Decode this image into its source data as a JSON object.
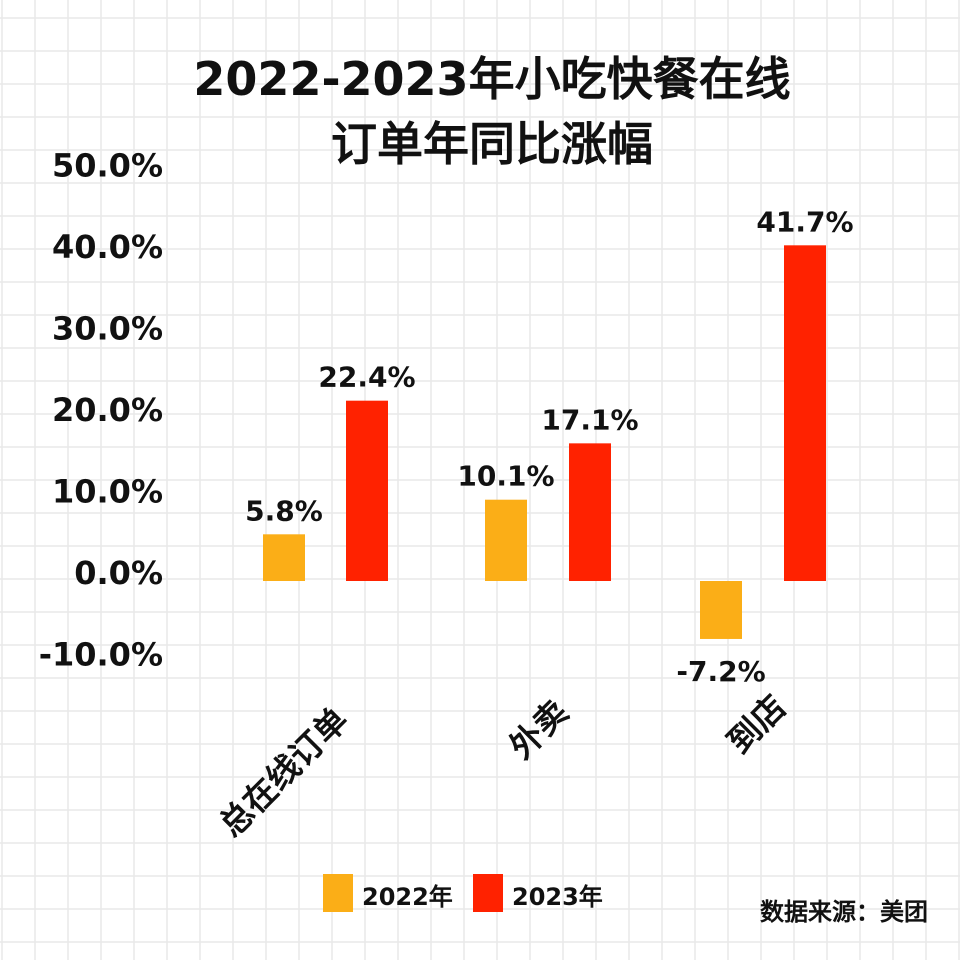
{
  "chart_data": {
    "type": "bar",
    "title_line1": "2022-2023年小吃快餐在线",
    "title_line2": "订单年同比涨幅",
    "categories": [
      "总在线订单",
      "外卖",
      "到店"
    ],
    "series": [
      {
        "name": "2022年",
        "color": "#FBAE17",
        "values": [
          5.8,
          10.1,
          -7.2
        ],
        "labels": [
          "5.8%",
          "10.1%",
          "-7.2%"
        ]
      },
      {
        "name": "2023年",
        "color": "#FF2200",
        "values": [
          22.4,
          17.1,
          41.7
        ],
        "labels": [
          "22.4%",
          "17.1%",
          "41.7%"
        ]
      }
    ],
    "yticks": [
      50,
      40,
      30,
      20,
      10,
      0,
      -10
    ],
    "ytick_labels": [
      "50.0%",
      "40.0%",
      "30.0%",
      "20.0%",
      "10.0%",
      "0.0%",
      "-10.0%"
    ],
    "ylim": [
      -10,
      50
    ],
    "grid": true,
    "legend_position": "bottom",
    "source": "数据来源：美团"
  }
}
